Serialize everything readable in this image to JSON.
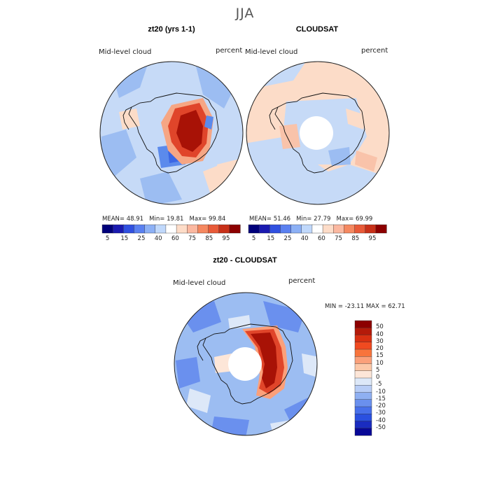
{
  "season": "JJA",
  "panels": [
    {
      "title": "zt20 (yrs 1-1)",
      "variable": "Mid-level cloud",
      "units": "percent",
      "stats": {
        "mean_label": "MEAN=",
        "mean": "48.91",
        "min_label": "Min=",
        "min": "19.81",
        "max_label": "Max=",
        "max": "99.84"
      }
    },
    {
      "title": "CLOUDSAT",
      "variable": "Mid-level cloud",
      "units": "percent",
      "stats": {
        "mean_label": "MEAN=",
        "mean": "51.46",
        "min_label": "Min=",
        "min": "27.79",
        "max_label": "Max=",
        "max": "69.99"
      }
    },
    {
      "title": "zt20 - CLOUDSAT",
      "variable": "Mid-level cloud",
      "units": "percent",
      "stats_line": "MIN = -23.11 MAX =  62.71"
    }
  ],
  "top_colorbar": {
    "colors": [
      "#00007a",
      "#1a1ab0",
      "#3050e0",
      "#5a80f0",
      "#8cb0f5",
      "#c0d8fb",
      "#ffffff",
      "#fddcc8",
      "#fbb8a0",
      "#f58860",
      "#e85a38",
      "#c83018",
      "#8c0000"
    ],
    "tick_labels": [
      "5",
      "15",
      "25",
      "40",
      "60",
      "75",
      "85",
      "95"
    ]
  },
  "diff_colorbar": {
    "colors": [
      "#8c0000",
      "#b41a0a",
      "#d83012",
      "#f04a20",
      "#f8743c",
      "#fba07a",
      "#fcc8a8",
      "#fde6d8",
      "#dde8f8",
      "#b8cdf6",
      "#8fb0f2",
      "#6a90ee",
      "#4870ea",
      "#2a50e0",
      "#1a2cc0",
      "#080896"
    ],
    "tick_labels": [
      "50",
      "40",
      "30",
      "20",
      "15",
      "10",
      "5",
      "0",
      "-5",
      "-10",
      "-15",
      "-20",
      "-30",
      "-40",
      "-50"
    ]
  },
  "fill_colors": {
    "ocean_light": "#c6daf7",
    "ocean_mid": "#9cbdf2",
    "ocean_deep": "#5b8aec",
    "warm_light": "#fcdcc8",
    "warm_mid": "#f6a684",
    "red": "#e0452a",
    "dark_red": "#a81206",
    "no_data": "#ffffff"
  }
}
